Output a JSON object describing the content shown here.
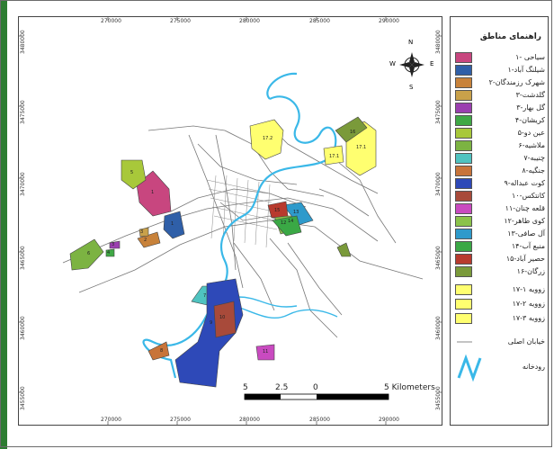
{
  "map": {
    "x_ticks": [
      "270000",
      "275000",
      "280000",
      "285000",
      "290000"
    ],
    "y_ticks": [
      "3480000",
      "3475000",
      "3470000",
      "3465000",
      "3460000",
      "3455000"
    ],
    "scale_labels": [
      "5",
      "2.5",
      "0",
      "5 Kilometers"
    ],
    "north_arrow": {
      "n": "N",
      "s": "S",
      "e": "E",
      "w": "W"
    }
  },
  "legend": {
    "title": "راهنمای مناطق",
    "items": [
      {
        "label": "سیاحی -۱",
        "color": "#c8467f"
      },
      {
        "label": "شیلنگ آباد-۱",
        "color": "#2f5fa8"
      },
      {
        "label": "شهرک رزمندگان-۲",
        "color": "#c8823a"
      },
      {
        "label": "گلدشت-۳",
        "color": "#c9a14a"
      },
      {
        "label": "گل بهار-۳",
        "color": "#9b3fb0"
      },
      {
        "label": "کریشان-۴",
        "color": "#3fa845"
      },
      {
        "label": "عین دو-۵",
        "color": "#a8c83a"
      },
      {
        "label": "ملاشیه-۶",
        "color": "#7cb342"
      },
      {
        "label": "چنیبه-۷",
        "color": "#4fc3c0"
      },
      {
        "label": "جنگیه-۸",
        "color": "#c8743a"
      },
      {
        "label": "کوت عبداله-۹",
        "color": "#2e49b8"
      },
      {
        "label": "کانتکس-۱۰",
        "color": "#a84a3a"
      },
      {
        "label": "قلعه چنان-۱۱",
        "color": "#c94ac0"
      },
      {
        "label": "کوی طاهر-۱۲",
        "color": "#8bc34a"
      },
      {
        "label": "آل صافی-۱۳",
        "color": "#2e9acb"
      },
      {
        "label": "منبع آب-۱۴",
        "color": "#3aa845"
      },
      {
        "label": "حصیر آباد-۱۵",
        "color": "#b83a2e"
      },
      {
        "label": "زرگان-۱۶",
        "color": "#7a9a3a"
      },
      {
        "label": "زوویه ۱-۱۷",
        "color": "#ffff70"
      },
      {
        "label": "زوویه ۲-۱۷",
        "color": "#ffff70"
      },
      {
        "label": "زوویه ۳-۱۷",
        "color": "#ffff70"
      },
      {
        "label": "خیابان اصلی",
        "color": "#888888"
      },
      {
        "label": "رودخانه",
        "color": "#3ab8e8"
      }
    ]
  },
  "colors": {
    "river": "#3ab8e8",
    "streets": "#777777",
    "frame": "#444444",
    "accent": "#2e7d32"
  },
  "polygon_labels": [
    "1",
    "2",
    "3",
    "4",
    "5",
    "6",
    "7",
    "8",
    "9",
    "10",
    "11",
    "12",
    "13",
    "14",
    "15",
    "16",
    "17.1",
    "17.2",
    "17.3"
  ]
}
